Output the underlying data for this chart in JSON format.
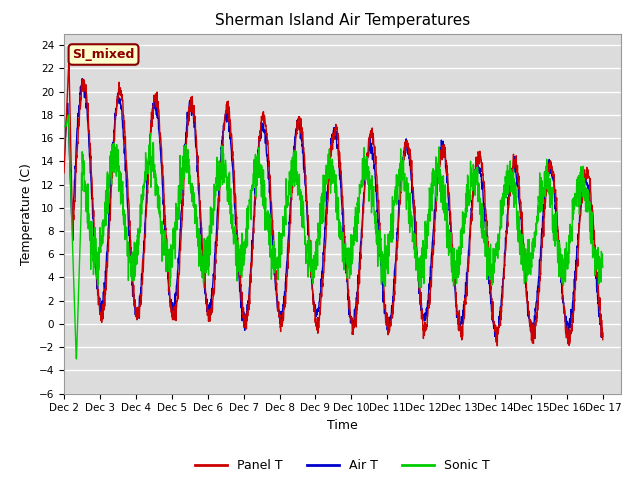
{
  "title": "Sherman Island Air Temperatures",
  "xlabel": "Time",
  "ylabel": "Temperature (C)",
  "ylim": [
    -6,
    25
  ],
  "yticks": [
    -6,
    -4,
    -2,
    0,
    2,
    4,
    6,
    8,
    10,
    12,
    14,
    16,
    18,
    20,
    22,
    24
  ],
  "bg_color": "#dcdcdc",
  "fig_color": "#ffffff",
  "grid_color": "#ffffff",
  "line_colors": {
    "panel": "#cc0000",
    "air": "#0000cc",
    "sonic": "#00cc00"
  },
  "annotation_text": "SI_mixed",
  "annotation_bg": "#ffffcc",
  "annotation_border": "#8b0000",
  "legend_labels": [
    "Panel T",
    "Air T",
    "Sonic T"
  ],
  "n_days": 15,
  "start_day": 2
}
